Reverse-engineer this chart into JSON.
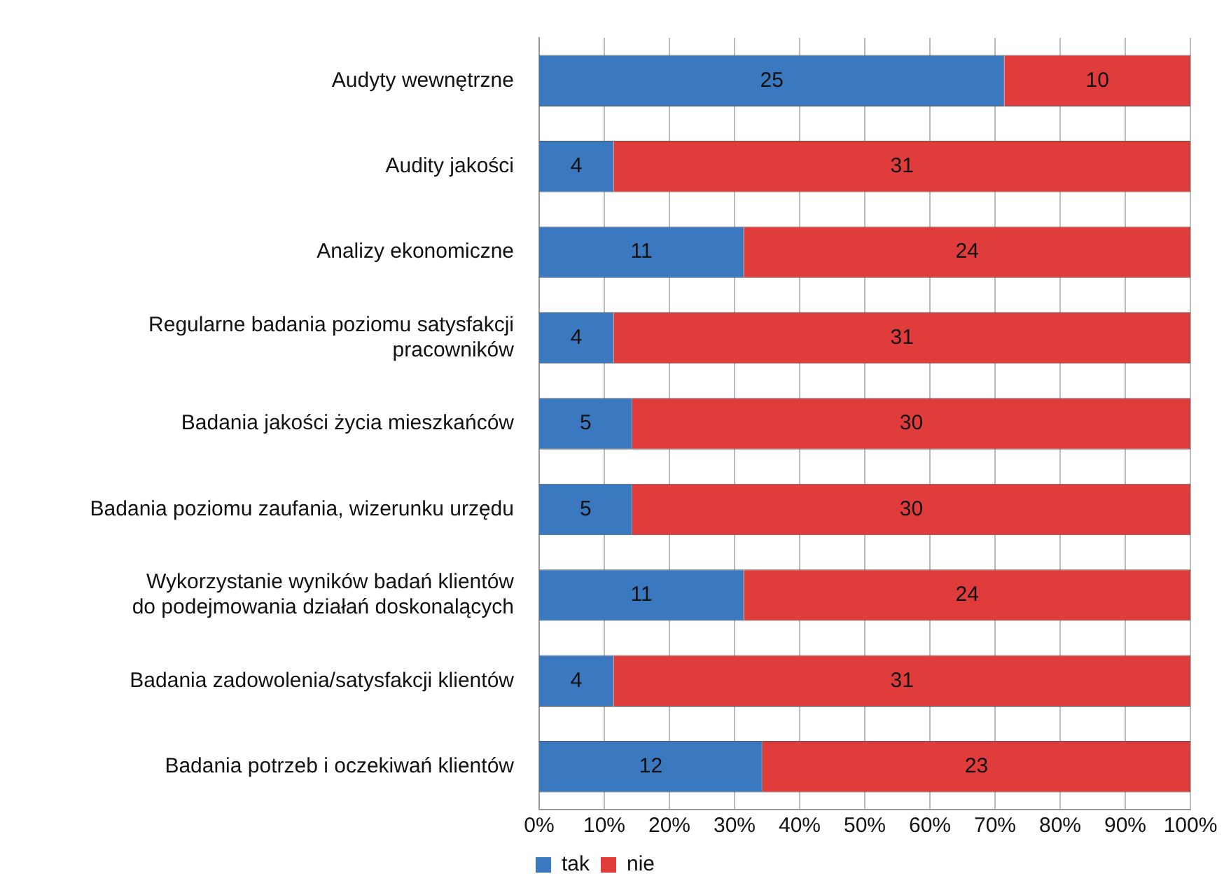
{
  "chart_data": {
    "type": "bar",
    "orientation": "horizontal",
    "stacked": true,
    "categories": [
      "Audyty wewnętrzne",
      "Audity jakości",
      "Analizy ekonomiczne",
      "Regularne badania poziomu satysfakcji\npracowników",
      "Badania jakości życia mieszkańców",
      "Badania poziomu zaufania, wizerunku urzędu",
      "Wykorzystanie wyników badań klientów\ndo podejmowania działań doskonalących",
      "Badania zadowolenia/satysfakcji klientów",
      "Badania potrzeb i oczekiwań klientów"
    ],
    "series": [
      {
        "name": "tak",
        "color": "#3a78c0",
        "values": [
          25,
          4,
          11,
          4,
          5,
          5,
          11,
          4,
          12
        ]
      },
      {
        "name": "nie",
        "color": "#e03c3c",
        "values": [
          10,
          31,
          24,
          31,
          30,
          30,
          24,
          31,
          23
        ]
      }
    ],
    "xlim": [
      0,
      35
    ],
    "x2lim": [
      0,
      100
    ],
    "x2ticks": [
      {
        "value": 0,
        "label": "0%"
      },
      {
        "value": 10,
        "label": "10%"
      },
      {
        "value": 20,
        "label": "20%"
      },
      {
        "value": 30,
        "label": "30%"
      },
      {
        "value": 40,
        "label": "40%"
      },
      {
        "value": 50,
        "label": "50%"
      },
      {
        "value": 60,
        "label": "60%"
      },
      {
        "value": 70,
        "label": "70%"
      },
      {
        "value": 80,
        "label": "80%"
      },
      {
        "value": 90,
        "label": "90%"
      },
      {
        "value": 100,
        "label": "100%"
      }
    ],
    "grid": "x",
    "legend": "bottom",
    "data_labels": true
  }
}
